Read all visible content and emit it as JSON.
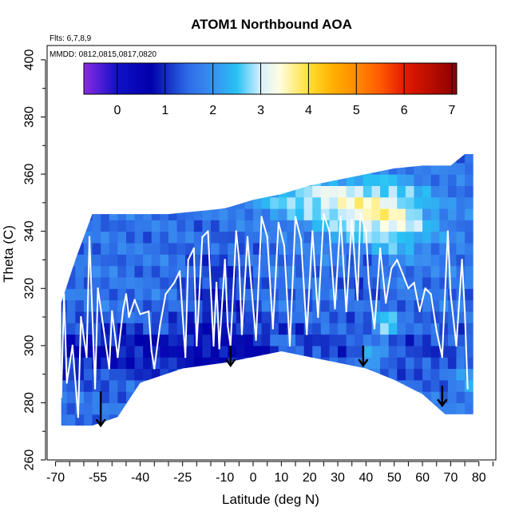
{
  "chart_data": {
    "type": "heatmap",
    "title": "ATOM1 Northbound AOA",
    "flights_note": "Flts: 6,7,8,9",
    "dates_note": "MMDD: 0812,0815,0817,0820",
    "xlabel": "Latitude (deg N)",
    "ylabel": "Theta (C)",
    "xlim": [
      -73,
      86
    ],
    "ylim": [
      260,
      405
    ],
    "x_ticks": [
      -70,
      -55,
      -40,
      -25,
      -10,
      0,
      10,
      20,
      30,
      40,
      50,
      60,
      70,
      80
    ],
    "x_tick_labels": [
      "-70",
      "-55",
      "-40",
      "-25",
      "-10",
      "0",
      "10",
      "20",
      "30",
      "40",
      "50",
      "60",
      "70",
      "80"
    ],
    "y_ticks": [
      260,
      280,
      300,
      320,
      340,
      360,
      380,
      400
    ],
    "y_tick_labels": [
      "260",
      "280",
      "300",
      "320",
      "340",
      "360",
      "380",
      "400"
    ],
    "colorbar": {
      "range": [
        -0.7,
        7.1
      ],
      "ticks": [
        0,
        1,
        2,
        3,
        4,
        5,
        6,
        7
      ],
      "tick_labels": [
        "0",
        "1",
        "2",
        "3",
        "4",
        "5",
        "6",
        "7"
      ],
      "stops": [
        {
          "v": -0.7,
          "color": "#8a2be2"
        },
        {
          "v": 0.0,
          "color": "#1010c8"
        },
        {
          "v": 0.7,
          "color": "#0000aa"
        },
        {
          "v": 1.5,
          "color": "#2e6ee8"
        },
        {
          "v": 2.0,
          "color": "#3a8ff0"
        },
        {
          "v": 2.5,
          "color": "#28c2f5"
        },
        {
          "v": 3.0,
          "color": "#d8f0ff"
        },
        {
          "v": 3.4,
          "color": "#fffde0"
        },
        {
          "v": 4.0,
          "color": "#ffe033"
        },
        {
          "v": 4.5,
          "color": "#ffb000"
        },
        {
          "v": 5.0,
          "color": "#ff8a00"
        },
        {
          "v": 5.5,
          "color": "#ff5a00"
        },
        {
          "v": 6.0,
          "color": "#e51a00"
        },
        {
          "v": 7.1,
          "color": "#8b0000"
        }
      ]
    },
    "bottom_boundary": [
      [
        -68,
        272
      ],
      [
        -57,
        272
      ],
      [
        -48,
        275
      ],
      [
        -40,
        287
      ],
      [
        -25,
        292
      ],
      [
        -10,
        294
      ],
      [
        0,
        296
      ],
      [
        10,
        298
      ],
      [
        20,
        296
      ],
      [
        30,
        294
      ],
      [
        40,
        292
      ],
      [
        50,
        288
      ],
      [
        60,
        283
      ],
      [
        68,
        276
      ],
      [
        75,
        276
      ]
    ],
    "top_boundary": [
      [
        -68,
        315
      ],
      [
        -63,
        330
      ],
      [
        -57,
        346
      ],
      [
        -40,
        346
      ],
      [
        -30,
        346
      ],
      [
        -20,
        347
      ],
      [
        -10,
        348
      ],
      [
        0,
        351
      ],
      [
        10,
        353
      ],
      [
        20,
        356
      ],
      [
        30,
        358
      ],
      [
        40,
        360
      ],
      [
        50,
        362
      ],
      [
        60,
        363
      ],
      [
        70,
        363
      ],
      [
        75,
        367
      ],
      [
        78,
        367
      ]
    ],
    "x_edges": [
      -69,
      -66,
      -63,
      -60,
      -57,
      -54,
      -51,
      -48,
      -45,
      -42,
      -39,
      -36,
      -33,
      -30,
      -27,
      -24,
      -21,
      -18,
      -15,
      -12,
      -9,
      -6,
      -3,
      0,
      3,
      6,
      9,
      12,
      15,
      18,
      21,
      24,
      27,
      30,
      33,
      36,
      39,
      42,
      45,
      48,
      51,
      54,
      57,
      60,
      63,
      66,
      69,
      72,
      75,
      78
    ],
    "y_edges": [
      272,
      276,
      280,
      284,
      288,
      292,
      296,
      300,
      304,
      308,
      312,
      316,
      320,
      324,
      328,
      332,
      336,
      340,
      344,
      348,
      352,
      356,
      360,
      364,
      368
    ],
    "flight_track": [
      [
        -68,
        282
      ],
      [
        -67,
        318
      ],
      [
        -66,
        287
      ],
      [
        -64,
        300
      ],
      [
        -62,
        275
      ],
      [
        -61,
        310
      ],
      [
        -59,
        296
      ],
      [
        -58,
        338
      ],
      [
        -56,
        285
      ],
      [
        -55,
        320
      ],
      [
        -53,
        306
      ],
      [
        -51,
        292
      ],
      [
        -50,
        312
      ],
      [
        -48,
        296
      ],
      [
        -46,
        313
      ],
      [
        -45,
        318
      ],
      [
        -44,
        310
      ],
      [
        -42,
        316
      ],
      [
        -40,
        311
      ],
      [
        -37,
        312
      ],
      [
        -36,
        298
      ],
      [
        -35,
        292
      ],
      [
        -33,
        307
      ],
      [
        -31,
        318
      ],
      [
        -28,
        322
      ],
      [
        -26,
        326
      ],
      [
        -24,
        296
      ],
      [
        -23,
        330
      ],
      [
        -21,
        334
      ],
      [
        -20,
        300
      ],
      [
        -18,
        338
      ],
      [
        -16,
        340
      ],
      [
        -14,
        300
      ],
      [
        -13,
        322
      ],
      [
        -12,
        299
      ],
      [
        -10,
        330
      ],
      [
        -9,
        307
      ],
      [
        -8,
        300
      ],
      [
        -6,
        340
      ],
      [
        -5,
        330
      ],
      [
        -4,
        304
      ],
      [
        -2,
        338
      ],
      [
        -1,
        325
      ],
      [
        1,
        302
      ],
      [
        3,
        345
      ],
      [
        5,
        338
      ],
      [
        7,
        306
      ],
      [
        9,
        343
      ],
      [
        11,
        335
      ],
      [
        13,
        300
      ],
      [
        15,
        345
      ],
      [
        17,
        337
      ],
      [
        19,
        304
      ],
      [
        21,
        340
      ],
      [
        23,
        310
      ],
      [
        25,
        346
      ],
      [
        27,
        340
      ],
      [
        29,
        313
      ],
      [
        31,
        345
      ],
      [
        33,
        312
      ],
      [
        35,
        344
      ],
      [
        37,
        316
      ],
      [
        38,
        346
      ],
      [
        40,
        340
      ],
      [
        41,
        322
      ],
      [
        43,
        306
      ],
      [
        45,
        334
      ],
      [
        47,
        315
      ],
      [
        49,
        327
      ],
      [
        51,
        330
      ],
      [
        53,
        325
      ],
      [
        55,
        320
      ],
      [
        57,
        322
      ],
      [
        59,
        312
      ],
      [
        61,
        320
      ],
      [
        63,
        318
      ],
      [
        65,
        305
      ],
      [
        67,
        296
      ],
      [
        69,
        340
      ],
      [
        70,
        318
      ],
      [
        72,
        300
      ],
      [
        74,
        330
      ],
      [
        75,
        312
      ],
      [
        76,
        285
      ]
    ],
    "arrows": [
      {
        "x": -54,
        "y_top": 284,
        "y_bottom": 272
      },
      {
        "x": -8,
        "y_top": 300,
        "y_bottom": 293
      },
      {
        "x": 39,
        "y_top": 300,
        "y_bottom": 293
      },
      {
        "x": 67,
        "y_top": 286,
        "y_bottom": 279
      }
    ]
  }
}
